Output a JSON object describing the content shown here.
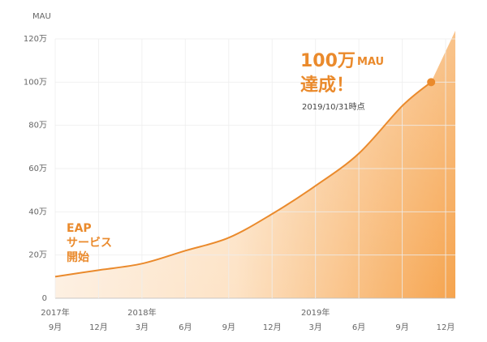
{
  "chart_data": {
    "type": "line",
    "y_axis_label": "MAU",
    "x": [
      "2017-09",
      "2017-12",
      "2018-03",
      "2018-06",
      "2018-09",
      "2018-12",
      "2019-03",
      "2019-06",
      "2019-09",
      "2019-10-31"
    ],
    "series": [
      {
        "name": "MAU",
        "color": "#ea8a2c",
        "values": [
          10,
          13,
          16,
          22,
          28,
          39,
          52,
          67,
          89,
          100
        ]
      }
    ],
    "xlim": [
      "2017-09",
      "2019-12"
    ],
    "xticks": [
      {
        "value": "2017-09",
        "label": "9月"
      },
      {
        "value": "2017-12",
        "label": "12月"
      },
      {
        "value": "2018-03",
        "label": "3月"
      },
      {
        "value": "2018-06",
        "label": "6月"
      },
      {
        "value": "2018-09",
        "label": "9月"
      },
      {
        "value": "2018-12",
        "label": "12月"
      },
      {
        "value": "2019-03",
        "label": "3月"
      },
      {
        "value": "2019-06",
        "label": "6月"
      },
      {
        "value": "2019-09",
        "label": "9月"
      },
      {
        "value": "2019-12",
        "label": "12月"
      }
    ],
    "year_labels": [
      {
        "value": "2017-09",
        "label": "2017年"
      },
      {
        "value": "2018-03",
        "label": "2018年"
      },
      {
        "value": "2019-03",
        "label": "2019年"
      }
    ],
    "ylim": [
      0,
      120
    ],
    "yticks": [
      0,
      {
        "value": 20,
        "label": "20万"
      },
      {
        "value": 40,
        "label": "40万"
      },
      {
        "value": 60,
        "label": "60万"
      },
      {
        "value": 80,
        "label": "80万"
      },
      {
        "value": 100,
        "label": "100万"
      },
      {
        "value": 120,
        "label": "120万"
      }
    ],
    "grid": true,
    "annotations": {
      "start": [
        "EAP",
        "サービス",
        "開始"
      ],
      "milestone": {
        "amount": "100万",
        "unit": "MAU",
        "line2": "達成！",
        "date": "2019/10/31時点"
      }
    }
  }
}
